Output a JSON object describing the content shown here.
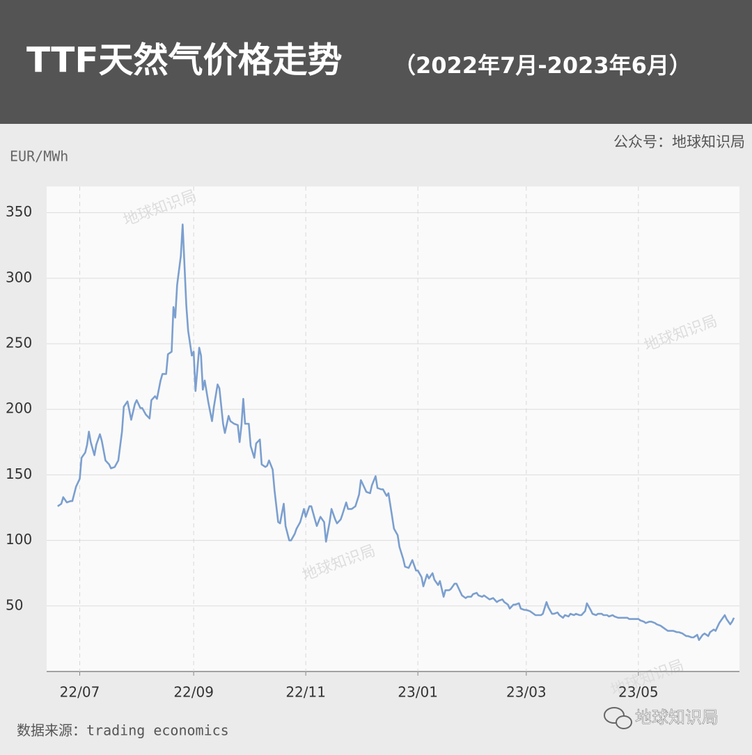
{
  "chart_data": {
    "type": "line",
    "title": "TTF天然气价格走势",
    "subtitle": "（2022年7月-2023年6月）",
    "source_account": "公众号：地球知识局",
    "y_label": "EUR/MWh",
    "source": "数据来源：trading economics",
    "watermark": "地球知识局",
    "brand": "地球知识局",
    "xlim": [
      -18,
      359
    ],
    "xticks": [
      {
        "value": 0,
        "label": "22/07"
      },
      {
        "value": 62,
        "label": "22/09"
      },
      {
        "value": 123,
        "label": "22/11"
      },
      {
        "value": 184,
        "label": "23/01"
      },
      {
        "value": 243,
        "label": "23/03"
      },
      {
        "value": 304,
        "label": "23/05"
      }
    ],
    "ylim": [
      0,
      370
    ],
    "yticks": [
      50,
      100,
      150,
      200,
      250,
      300,
      350
    ],
    "grid": true,
    "x": [
      -12,
      -10,
      -9,
      -7,
      -5,
      -4,
      -2,
      0,
      1,
      3,
      4,
      5,
      6,
      8,
      9,
      11,
      12,
      14,
      16,
      17,
      19,
      21,
      23,
      24,
      26,
      27,
      28,
      30,
      31,
      33,
      34,
      36,
      38,
      39,
      41,
      42,
      44,
      45,
      47,
      48,
      50,
      51,
      52,
      53,
      55,
      56,
      58,
      59,
      61,
      62,
      63,
      65,
      66,
      67,
      68,
      70,
      72,
      73,
      75,
      76,
      78,
      79,
      81,
      82,
      84,
      86,
      87,
      88,
      89,
      90,
      92,
      93,
      95,
      96,
      98,
      99,
      101,
      102,
      103,
      105,
      106,
      108,
      109,
      111,
      112,
      114,
      115,
      117,
      118,
      120,
      122,
      123,
      125,
      126,
      128,
      129,
      131,
      133,
      134,
      136,
      137,
      139,
      140,
      142,
      143,
      145,
      146,
      148,
      150,
      152,
      153,
      155,
      156,
      158,
      159,
      161,
      162,
      164,
      165,
      167,
      168,
      170,
      171,
      173,
      174,
      176,
      177,
      179,
      180,
      181,
      183,
      184,
      186,
      187,
      189,
      190,
      192,
      193,
      195,
      196,
      198,
      199,
      201,
      202,
      204,
      205,
      207,
      208,
      210,
      211,
      213,
      214,
      216,
      217,
      219,
      220,
      222,
      223,
      225,
      227,
      228,
      230,
      231,
      233,
      234,
      236,
      237,
      239,
      240,
      242,
      243,
      245,
      246,
      248,
      249,
      251,
      252,
      254,
      255,
      257,
      258,
      260,
      261,
      263,
      264,
      266,
      267,
      269,
      270,
      272,
      273,
      275,
      276,
      278,
      279,
      281,
      282,
      284,
      285,
      287,
      288,
      290,
      291,
      293,
      295,
      296,
      298,
      299,
      301,
      302,
      304,
      305,
      307,
      308,
      310,
      311,
      313,
      314,
      316,
      317,
      319,
      320,
      322,
      323,
      325,
      326,
      328,
      330,
      331,
      333,
      334,
      336,
      337,
      339,
      340,
      342,
      343,
      345,
      346,
      348,
      349,
      351,
      352,
      354,
      355,
      356
    ],
    "series": [
      {
        "name": "TTF",
        "color": "#7b9fcf",
        "values": [
          126,
          128,
          133,
          129,
          130,
          130,
          141,
          147,
          163,
          167,
          173,
          183,
          175,
          165,
          173,
          181,
          176,
          161,
          158,
          155,
          156,
          161,
          183,
          202,
          206,
          199,
          192,
          204,
          207,
          201,
          201,
          196,
          193,
          207,
          210,
          208,
          222,
          227,
          227,
          242,
          244,
          278,
          270,
          295,
          317,
          341,
          279,
          260,
          241,
          244,
          214,
          247,
          241,
          215,
          222,
          205,
          191,
          202,
          219,
          216,
          189,
          182,
          195,
          191,
          189,
          188,
          175,
          188,
          208,
          189,
          189,
          172,
          163,
          174,
          177,
          158,
          156,
          157,
          161,
          154,
          138,
          114,
          113,
          128,
          111,
          100,
          100,
          105,
          109,
          114,
          124,
          118,
          126,
          126,
          116,
          111,
          118,
          114,
          99,
          114,
          124,
          116,
          113,
          116,
          120,
          129,
          124,
          124,
          126,
          135,
          146,
          140,
          137,
          136,
          142,
          149,
          140,
          139,
          139,
          134,
          136,
          118,
          109,
          104,
          95,
          86,
          80,
          79,
          82,
          85,
          77,
          77,
          72,
          65,
          74,
          71,
          75,
          70,
          66,
          69,
          57,
          62,
          62,
          63,
          67,
          67,
          61,
          58,
          56,
          57,
          57,
          59,
          60,
          58,
          57,
          58,
          56,
          55,
          56,
          53,
          54,
          55,
          53,
          51,
          48,
          51,
          51,
          52,
          48,
          47,
          47,
          46,
          45,
          43,
          43,
          43,
          44,
          53,
          49,
          44,
          44,
          45,
          43,
          41,
          43,
          42,
          44,
          43,
          44,
          43,
          43,
          46,
          52,
          47,
          44,
          43,
          44,
          44,
          43,
          43,
          42,
          43,
          42,
          41,
          41,
          41,
          41,
          40,
          40,
          40,
          40,
          39,
          38,
          37,
          38,
          38,
          37,
          36,
          35,
          34,
          32,
          31,
          31,
          31,
          30,
          30,
          29,
          27,
          27,
          26,
          26,
          28,
          24,
          28,
          29,
          27,
          30,
          32,
          31,
          37,
          39,
          43,
          40,
          36,
          38,
          41
        ]
      }
    ]
  }
}
